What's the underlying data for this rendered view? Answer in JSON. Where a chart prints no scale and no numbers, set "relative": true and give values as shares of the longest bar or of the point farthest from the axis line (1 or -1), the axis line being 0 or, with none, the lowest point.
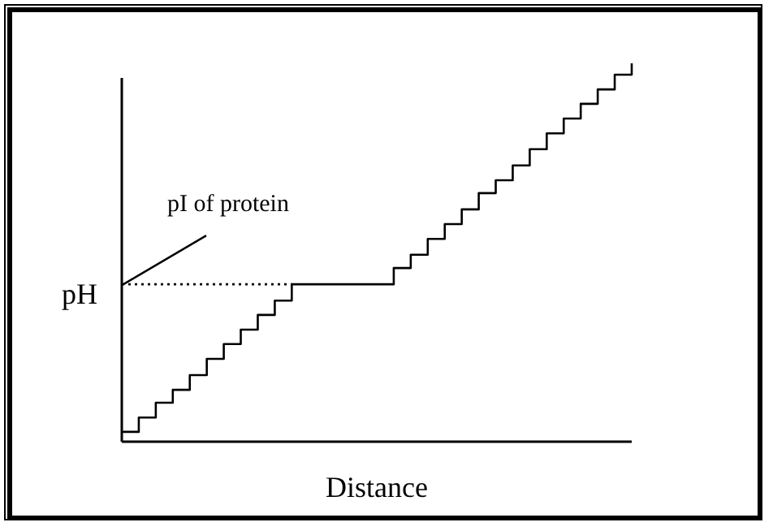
{
  "chart_data": {
    "type": "step",
    "relative": true,
    "xlabel": "Distance",
    "ylabel": "pH",
    "categories": [
      null,
      null,
      null,
      null,
      null,
      null,
      null,
      null,
      null,
      null,
      null,
      null,
      null,
      null,
      null,
      null,
      null,
      null,
      null,
      null,
      null,
      null,
      null,
      null,
      null,
      null,
      null,
      null,
      null,
      null,
      null
    ],
    "values": [
      0.026,
      0.064,
      0.103,
      0.137,
      0.176,
      0.219,
      0.258,
      0.296,
      0.335,
      0.373,
      0.416,
      0.416,
      0.416,
      0.416,
      0.416,
      0.416,
      0.459,
      0.494,
      0.536,
      0.575,
      0.614,
      0.657,
      0.691,
      0.73,
      0.773,
      0.815,
      0.854,
      0.893,
      0.931,
      0.97,
      1
    ],
    "color": "#000000",
    "ref_lines": [
      {
        "axis": "y",
        "value": 0.416,
        "label": "pI of protein",
        "line_style": "dotted"
      }
    ]
  }
}
